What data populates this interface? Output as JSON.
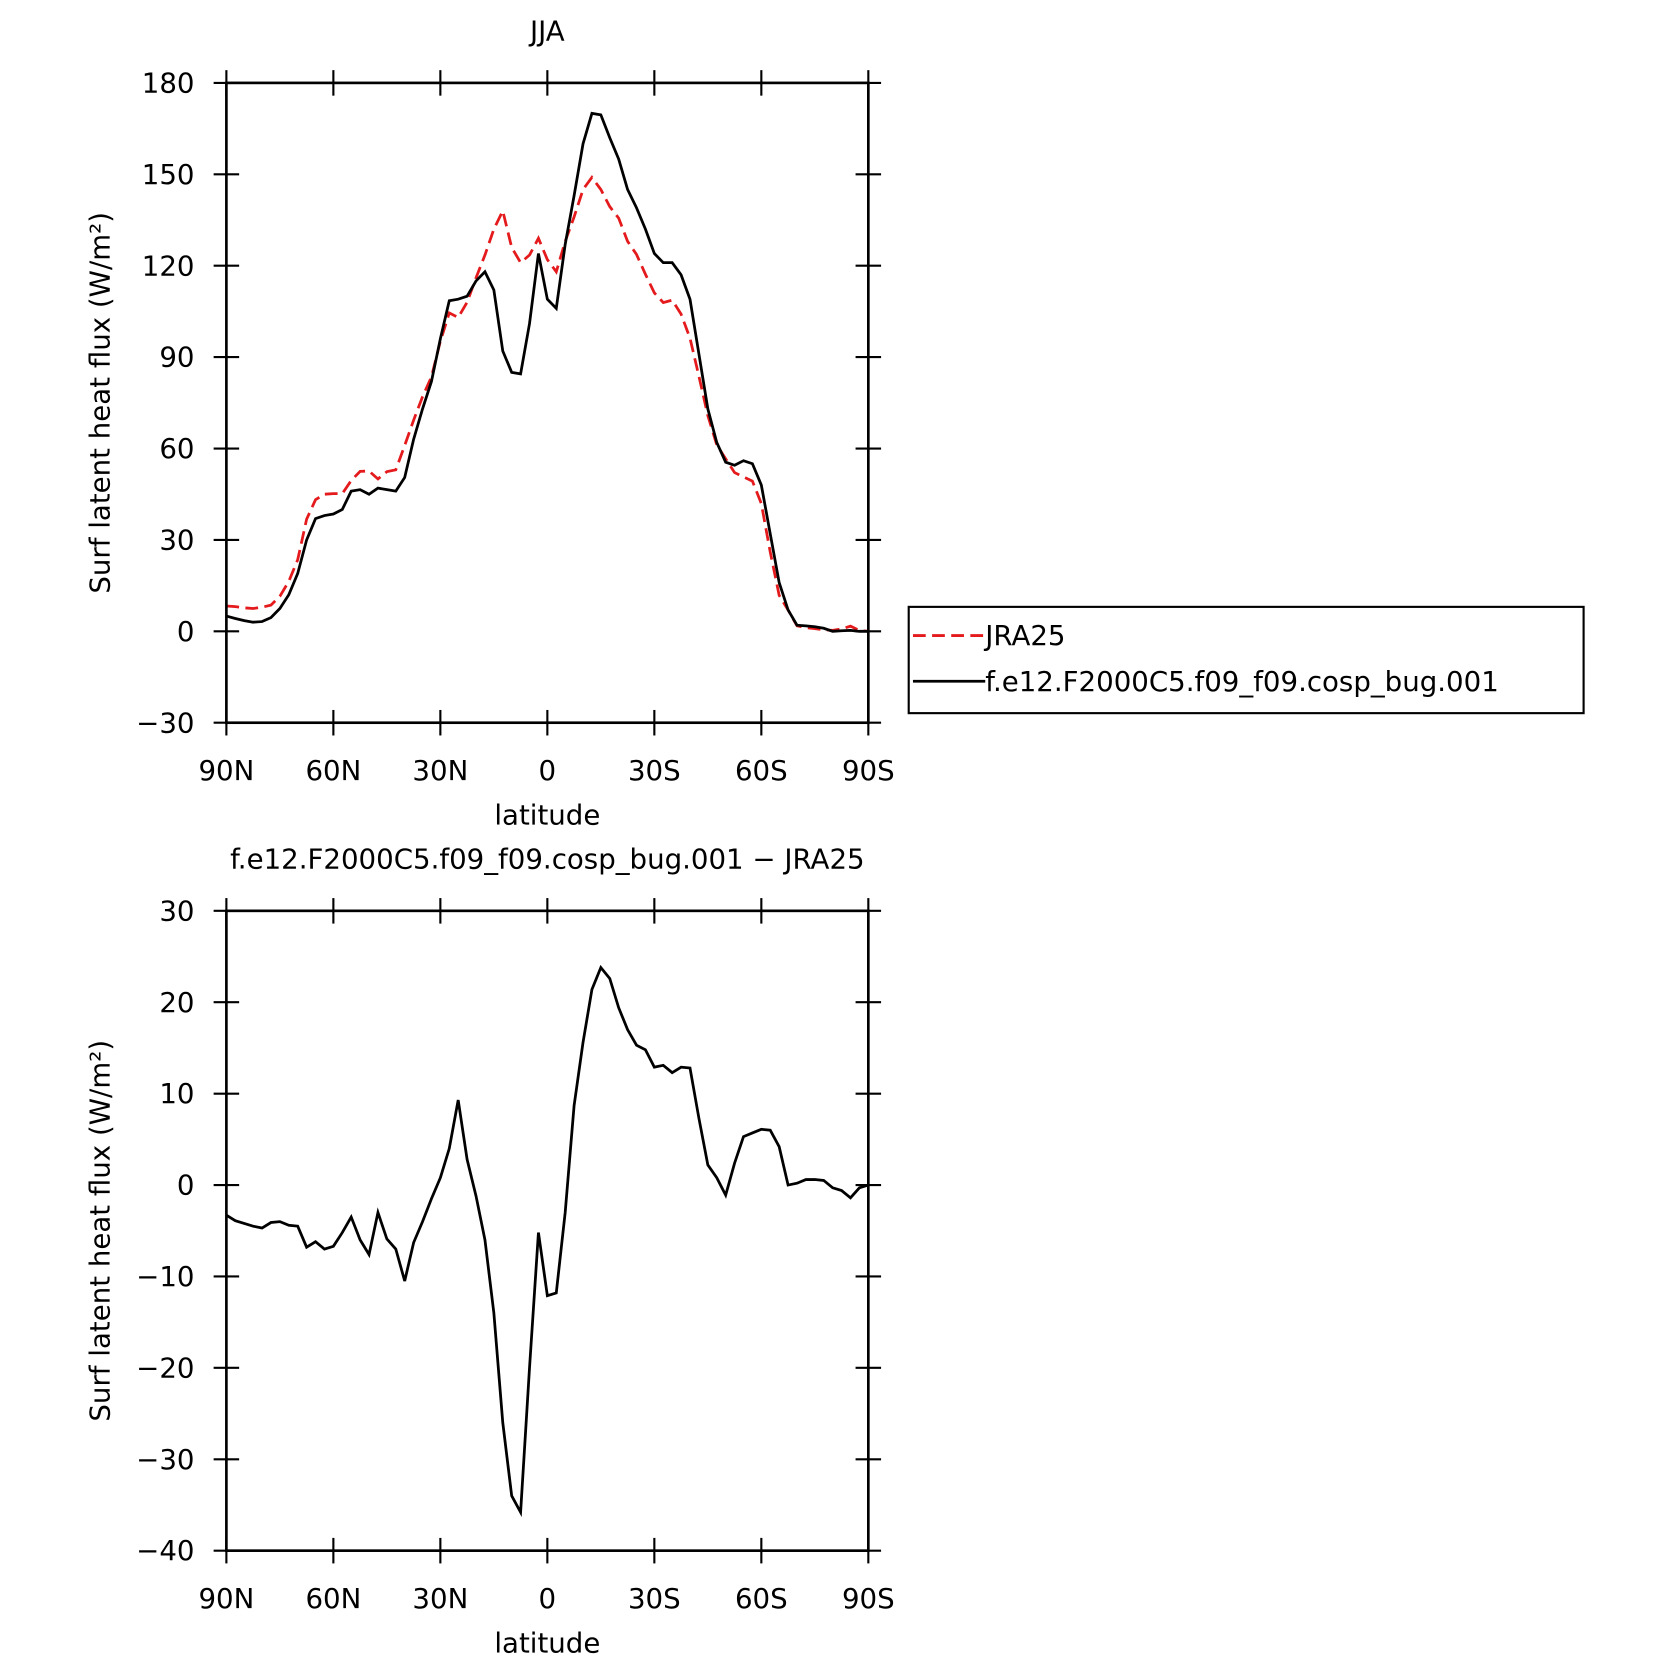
{
  "chart_data": [
    {
      "type": "line",
      "title": "JJA",
      "xlabel": "latitude",
      "ylabel": "Surf latent heat flux (W/m²)",
      "legend": "outside-right",
      "x": [
        90,
        87.5,
        85,
        82.5,
        80,
        77.5,
        75,
        72.5,
        70,
        67.5,
        65,
        62.5,
        60,
        57.5,
        55,
        52.5,
        50,
        47.5,
        45,
        42.5,
        40,
        37.5,
        35,
        32.5,
        30,
        27.5,
        25,
        22.5,
        20,
        17.5,
        15,
        12.5,
        10,
        7.5,
        5,
        2.5,
        0,
        -2.5,
        -5,
        -7.5,
        -10,
        -12.5,
        -15,
        -17.5,
        -20,
        -22.5,
        -25,
        -27.5,
        -30,
        -32.5,
        -35,
        -37.5,
        -40,
        -42.5,
        -45,
        -47.5,
        -50,
        -52.5,
        -55,
        -57.5,
        -60,
        -62.5,
        -65,
        -67.5,
        -70,
        -72.5,
        -75,
        -77.5,
        -80,
        -82.5,
        -85,
        -87.5,
        -90
      ],
      "xlim": [
        90,
        -90
      ],
      "xticks": [
        {
          "value": 90,
          "label": "90N"
        },
        {
          "value": 60,
          "label": "60N"
        },
        {
          "value": 30,
          "label": "30N"
        },
        0,
        {
          "value": -30,
          "label": "30S"
        },
        {
          "value": -60,
          "label": "60S"
        },
        {
          "value": -90,
          "label": "90S"
        }
      ],
      "ylim": [
        -30,
        180
      ],
      "yticks": [
        {
          "value": -30,
          "label": "−30"
        },
        0,
        30,
        60,
        90,
        120,
        150,
        180
      ],
      "series": [
        {
          "name": "JRA25",
          "color": "#e41a1c",
          "linestyle": "dashed",
          "values": [
            8.3,
            8.1,
            7.7,
            7.5,
            7.9,
            8.6,
            11.5,
            16.4,
            23.5,
            36.8,
            43.2,
            45,
            45.2,
            45.2,
            49.5,
            52.5,
            52.6,
            50,
            52.4,
            53,
            61,
            69.3,
            77,
            83.5,
            95.2,
            104.5,
            103,
            108,
            116,
            123.5,
            132,
            138,
            126,
            121,
            123.5,
            129,
            122,
            118,
            128,
            136,
            145,
            149,
            145,
            139.4,
            135.6,
            128,
            123.7,
            117.2,
            111.1,
            107.9,
            108.7,
            104.1,
            96.2,
            83.7,
            70.8,
            61.2,
            56.6,
            52.1,
            50.7,
            49.3,
            41.9,
            26,
            11.8,
            7,
            1.8,
            1.2,
            0.9,
            0.5,
            0.3,
            0.8,
            1.7,
            0.3,
            0
          ]
        },
        {
          "name": "f.e12.F2000C5.f09_f09.cosp_bug.001",
          "color": "#000000",
          "linestyle": "solid",
          "values": [
            5,
            4.2,
            3.5,
            3,
            3.2,
            4.5,
            7.5,
            12,
            19,
            30,
            37,
            38,
            38.5,
            40,
            46,
            46.5,
            45,
            47,
            46.5,
            46,
            50.5,
            63,
            73,
            82,
            96,
            108.5,
            109,
            110,
            115,
            118,
            112,
            92,
            85,
            84.5,
            101,
            124,
            109,
            106,
            127,
            143,
            160,
            170,
            169.5,
            162,
            155,
            145,
            139,
            132,
            124,
            121,
            121,
            117,
            109,
            91,
            73,
            62,
            55.5,
            54.5,
            56,
            55,
            48,
            32,
            16,
            7,
            2,
            1.8,
            1.5,
            1,
            0,
            0.2,
            0.3,
            0,
            0
          ]
        }
      ]
    },
    {
      "type": "line",
      "title": "f.e12.F2000C5.f09_f09.cosp_bug.001 − JRA25",
      "xlabel": "latitude",
      "ylabel": "Surf latent heat flux (W/m²)",
      "x": [
        90,
        87.5,
        85,
        82.5,
        80,
        77.5,
        75,
        72.5,
        70,
        67.5,
        65,
        62.5,
        60,
        57.5,
        55,
        52.5,
        50,
        47.5,
        45,
        42.5,
        40,
        37.5,
        35,
        32.5,
        30,
        27.5,
        25,
        22.5,
        20,
        17.5,
        15,
        12.5,
        10,
        7.5,
        5,
        2.5,
        0,
        -2.5,
        -5,
        -7.5,
        -10,
        -12.5,
        -15,
        -17.5,
        -20,
        -22.5,
        -25,
        -27.5,
        -30,
        -32.5,
        -35,
        -37.5,
        -40,
        -42.5,
        -45,
        -47.5,
        -50,
        -52.5,
        -55,
        -57.5,
        -60,
        -62.5,
        -65,
        -67.5,
        -70,
        -72.5,
        -75,
        -77.5,
        -80,
        -82.5,
        -85,
        -87.5,
        -90
      ],
      "xlim": [
        90,
        -90
      ],
      "xticks": [
        {
          "value": 90,
          "label": "90N"
        },
        {
          "value": 60,
          "label": "60N"
        },
        {
          "value": 30,
          "label": "30N"
        },
        0,
        {
          "value": -30,
          "label": "30S"
        },
        {
          "value": -60,
          "label": "60S"
        },
        {
          "value": -90,
          "label": "90S"
        }
      ],
      "ylim": [
        -40,
        30
      ],
      "yticks": [
        {
          "value": -40,
          "label": "−40"
        },
        {
          "value": -30,
          "label": "−30"
        },
        {
          "value": -20,
          "label": "−20"
        },
        {
          "value": -10,
          "label": "−10"
        },
        0,
        10,
        20,
        30
      ],
      "series": [
        {
          "color": "#000000",
          "linestyle": "solid",
          "values": [
            -3.3,
            -3.9,
            -4.2,
            -4.5,
            -4.7,
            -4.1,
            -4,
            -4.4,
            -4.5,
            -6.8,
            -6.2,
            -7,
            -6.7,
            -5.2,
            -3.5,
            -6,
            -7.6,
            -3,
            -5.9,
            -7,
            -10.5,
            -6.3,
            -4,
            -1.5,
            0.8,
            4,
            9.3,
            2.8,
            -1.2,
            -6,
            -14,
            -26,
            -34,
            -35.8,
            -20,
            -5.2,
            -12.1,
            -11.8,
            -3,
            8.7,
            15.6,
            21.4,
            23.8,
            22.6,
            19.4,
            17,
            15.3,
            14.8,
            12.9,
            13.1,
            12.3,
            12.9,
            12.8,
            7.3,
            2.2,
            0.8,
            -1.1,
            2.4,
            5.3,
            5.7,
            6.1,
            6,
            4.2,
            0,
            0.2,
            0.6,
            0.6,
            0.5,
            -0.3,
            -0.6,
            -1.4,
            -0.3,
            0
          ]
        }
      ]
    }
  ]
}
